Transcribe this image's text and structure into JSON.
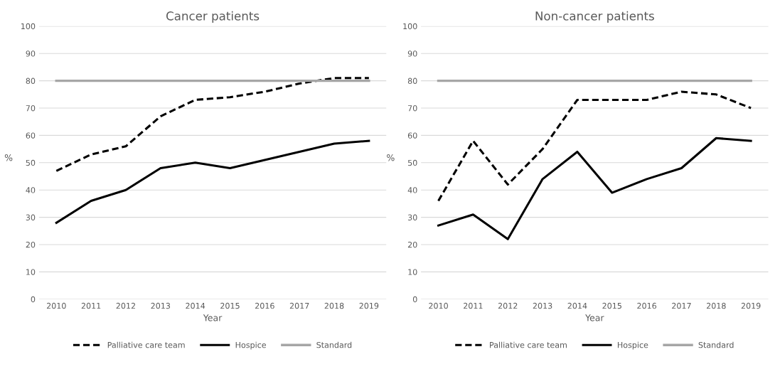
{
  "chart_data": [
    {
      "type": "line",
      "title": "Cancer patients",
      "xlabel": "Year",
      "ylabel": "%",
      "categories": [
        "2010",
        "2011",
        "2012",
        "2013",
        "2014",
        "2015",
        "2016",
        "2017",
        "2018",
        "2019"
      ],
      "ylim": [
        0,
        100
      ],
      "yticks": [
        0,
        10,
        20,
        30,
        40,
        50,
        60,
        70,
        80,
        90,
        100
      ],
      "grid": "y",
      "legend": "bottom",
      "series": [
        {
          "name": "Palliative care team",
          "color": "#000000",
          "line_style": "dashed",
          "values": [
            47,
            53,
            56,
            67,
            73,
            74,
            76,
            79,
            81,
            81
          ]
        },
        {
          "name": "Hospice",
          "color": "#000000",
          "line_style": "solid",
          "values": [
            28,
            36,
            40,
            48,
            50,
            48,
            51,
            54,
            57,
            58
          ]
        },
        {
          "name": "Standard",
          "color": "#a6a6a6",
          "line_style": "solid",
          "values": [
            80,
            80,
            80,
            80,
            80,
            80,
            80,
            80,
            80,
            80
          ]
        }
      ]
    },
    {
      "type": "line",
      "title": "Non-cancer patients",
      "xlabel": "Year",
      "ylabel": "%",
      "categories": [
        "2010",
        "2011",
        "2012",
        "2013",
        "2014",
        "2015",
        "2016",
        "2017",
        "2018",
        "2019"
      ],
      "ylim": [
        0,
        100
      ],
      "yticks": [
        0,
        10,
        20,
        30,
        40,
        50,
        60,
        70,
        80,
        90,
        100
      ],
      "grid": "y",
      "legend": "bottom",
      "series": [
        {
          "name": "Palliative care team",
          "color": "#000000",
          "line_style": "dashed",
          "values": [
            36,
            58,
            42,
            55,
            73,
            73,
            73,
            76,
            75,
            70
          ]
        },
        {
          "name": "Hospice",
          "color": "#000000",
          "line_style": "solid",
          "values": [
            27,
            31,
            22,
            44,
            54,
            39,
            44,
            48,
            59,
            58
          ]
        },
        {
          "name": "Standard",
          "color": "#a6a6a6",
          "line_style": "solid",
          "values": [
            80,
            80,
            80,
            80,
            80,
            80,
            80,
            80,
            80,
            80
          ]
        }
      ]
    }
  ]
}
